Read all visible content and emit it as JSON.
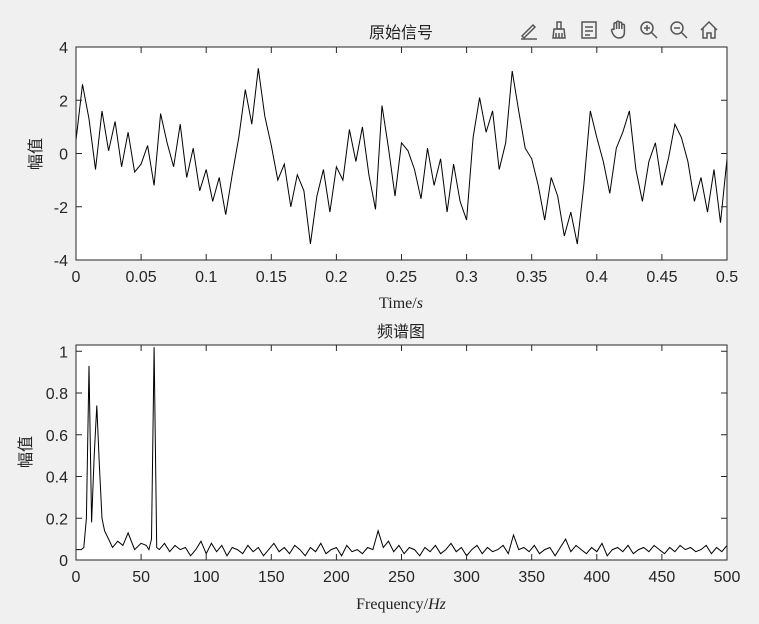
{
  "colors": {
    "background": "#f0f0f0",
    "axes_bg": "#ffffff",
    "line": "#000000",
    "axis": "#262626"
  },
  "toolbar": [
    {
      "name": "edit-tool-icon"
    },
    {
      "name": "brush-tool-icon"
    },
    {
      "name": "datatip-icon"
    },
    {
      "name": "pan-hand-icon"
    },
    {
      "name": "zoom-in-icon"
    },
    {
      "name": "zoom-out-icon"
    },
    {
      "name": "home-icon"
    }
  ],
  "chart_data": [
    {
      "type": "line",
      "title": "原始信号",
      "xlabel_main": "Time/",
      "xlabel_unit": "s",
      "ylabel": "幅值",
      "xlim": [
        0,
        0.5
      ],
      "ylim": [
        -4,
        4
      ],
      "xticks": [
        0,
        0.05,
        0.1,
        0.15,
        0.2,
        0.25,
        0.3,
        0.35,
        0.4,
        0.45,
        0.5
      ],
      "xtick_labels": [
        "0",
        "0.05",
        "0.1",
        "0.15",
        "0.2",
        "0.25",
        "0.3",
        "0.35",
        "0.4",
        "0.45",
        "0.5"
      ],
      "yticks": [
        -4,
        -2,
        0,
        2,
        4
      ],
      "ytick_labels": [
        "-4",
        "-2",
        "0",
        "2",
        "4"
      ],
      "grid": false,
      "series": [
        {
          "x": [
            0,
            0.005,
            0.01,
            0.015,
            0.02,
            0.025,
            0.03,
            0.035,
            0.04,
            0.045,
            0.05,
            0.055,
            0.06,
            0.065,
            0.07,
            0.075,
            0.08,
            0.085,
            0.09,
            0.095,
            0.1,
            0.105,
            0.11,
            0.115,
            0.12,
            0.125,
            0.13,
            0.135,
            0.14,
            0.145,
            0.15,
            0.155,
            0.16,
            0.165,
            0.17,
            0.175,
            0.18,
            0.185,
            0.19,
            0.195,
            0.2,
            0.205,
            0.21,
            0.215,
            0.22,
            0.225,
            0.23,
            0.235,
            0.24,
            0.245,
            0.25,
            0.255,
            0.26,
            0.265,
            0.27,
            0.275,
            0.28,
            0.285,
            0.29,
            0.295,
            0.3,
            0.305,
            0.31,
            0.315,
            0.32,
            0.325,
            0.33,
            0.335,
            0.34,
            0.345,
            0.35,
            0.355,
            0.36,
            0.365,
            0.37,
            0.375,
            0.38,
            0.385,
            0.39,
            0.395,
            0.4,
            0.405,
            0.41,
            0.415,
            0.42,
            0.425,
            0.43,
            0.435,
            0.44,
            0.445,
            0.45,
            0.455,
            0.46,
            0.465,
            0.47,
            0.475,
            0.48,
            0.485,
            0.49,
            0.495,
            0.5
          ],
          "y": [
            0.5,
            2.6,
            1.3,
            -0.6,
            1.6,
            0.1,
            1.2,
            -0.5,
            0.8,
            -0.7,
            -0.4,
            0.3,
            -1.2,
            1.5,
            0.4,
            -0.5,
            1.1,
            -0.9,
            0.2,
            -1.4,
            -0.6,
            -1.8,
            -0.9,
            -2.3,
            -0.8,
            0.6,
            2.4,
            1.1,
            3.2,
            1.4,
            0.3,
            -1.0,
            -0.4,
            -2.0,
            -0.8,
            -1.4,
            -3.4,
            -1.6,
            -0.6,
            -2.2,
            -0.5,
            -1.0,
            0.9,
            -0.3,
            1.0,
            -0.8,
            -2.1,
            1.8,
            0.2,
            -1.6,
            0.4,
            0.1,
            -0.6,
            -1.7,
            0.2,
            -1.2,
            -0.2,
            -2.2,
            -0.4,
            -1.8,
            -2.5,
            0.6,
            2.1,
            0.8,
            1.6,
            -0.6,
            0.4,
            3.1,
            1.6,
            0.2,
            -0.2,
            -1.2,
            -2.5,
            -0.9,
            -1.6,
            -3.1,
            -2.2,
            -3.4,
            -1.2,
            1.6,
            0.6,
            -0.3,
            -1.5,
            0.2,
            0.8,
            1.6,
            -0.6,
            -1.8,
            -0.3,
            0.4,
            -1.2,
            -0.2,
            1.1,
            0.6,
            -0.3,
            -1.8,
            -0.9,
            -2.2,
            -0.6,
            -2.6,
            -0.2
          ]
        }
      ]
    },
    {
      "type": "line",
      "title": "频谱图",
      "xlabel_main": "Frequency/",
      "xlabel_unit": "Hz",
      "ylabel": "幅值",
      "xlim": [
        0,
        500
      ],
      "ylim": [
        0,
        1.03
      ],
      "xticks": [
        0,
        50,
        100,
        150,
        200,
        250,
        300,
        350,
        400,
        450,
        500
      ],
      "xtick_labels": [
        "0",
        "50",
        "100",
        "150",
        "200",
        "250",
        "300",
        "350",
        "400",
        "450",
        "500"
      ],
      "yticks": [
        0,
        0.2,
        0.4,
        0.6,
        0.8,
        1
      ],
      "ytick_labels": [
        "0",
        "0.2",
        "0.4",
        "0.6",
        "0.8",
        "1"
      ],
      "grid": false,
      "series": [
        {
          "x": [
            0,
            2,
            4,
            6,
            8,
            10,
            12,
            14,
            16,
            18,
            20,
            22,
            25,
            28,
            32,
            36,
            40,
            45,
            50,
            54,
            56,
            58,
            60,
            62,
            64,
            68,
            72,
            76,
            80,
            84,
            88,
            92,
            96,
            100,
            104,
            108,
            112,
            116,
            120,
            124,
            128,
            132,
            136,
            140,
            144,
            148,
            152,
            156,
            160,
            164,
            168,
            172,
            176,
            180,
            184,
            188,
            192,
            196,
            200,
            204,
            208,
            212,
            216,
            220,
            224,
            228,
            232,
            236,
            240,
            244,
            248,
            252,
            256,
            260,
            264,
            268,
            272,
            276,
            280,
            284,
            288,
            292,
            296,
            300,
            304,
            308,
            312,
            316,
            320,
            324,
            328,
            332,
            336,
            340,
            344,
            348,
            352,
            356,
            360,
            364,
            368,
            372,
            376,
            380,
            384,
            388,
            392,
            396,
            400,
            404,
            408,
            412,
            416,
            420,
            424,
            428,
            432,
            436,
            440,
            444,
            448,
            452,
            456,
            460,
            464,
            468,
            472,
            476,
            480,
            484,
            488,
            492,
            496,
            500
          ],
          "y": [
            0.05,
            0.05,
            0.05,
            0.06,
            0.2,
            0.93,
            0.18,
            0.5,
            0.74,
            0.45,
            0.2,
            0.14,
            0.1,
            0.06,
            0.09,
            0.07,
            0.13,
            0.05,
            0.08,
            0.07,
            0.05,
            0.1,
            1.02,
            0.06,
            0.05,
            0.08,
            0.04,
            0.07,
            0.05,
            0.06,
            0.02,
            0.05,
            0.09,
            0.03,
            0.08,
            0.04,
            0.07,
            0.02,
            0.06,
            0.05,
            0.03,
            0.07,
            0.04,
            0.06,
            0.02,
            0.05,
            0.08,
            0.04,
            0.06,
            0.03,
            0.07,
            0.05,
            0.02,
            0.06,
            0.04,
            0.08,
            0.03,
            0.05,
            0.06,
            0.02,
            0.07,
            0.04,
            0.05,
            0.03,
            0.06,
            0.05,
            0.14,
            0.06,
            0.09,
            0.04,
            0.07,
            0.03,
            0.06,
            0.05,
            0.02,
            0.06,
            0.04,
            0.07,
            0.03,
            0.05,
            0.08,
            0.04,
            0.06,
            0.02,
            0.05,
            0.07,
            0.03,
            0.06,
            0.04,
            0.05,
            0.07,
            0.03,
            0.12,
            0.05,
            0.06,
            0.04,
            0.07,
            0.03,
            0.05,
            0.06,
            0.02,
            0.06,
            0.1,
            0.04,
            0.07,
            0.05,
            0.03,
            0.06,
            0.04,
            0.08,
            0.02,
            0.05,
            0.06,
            0.04,
            0.07,
            0.03,
            0.05,
            0.06,
            0.04,
            0.07,
            0.05,
            0.03,
            0.06,
            0.04,
            0.07,
            0.05,
            0.06,
            0.04,
            0.05,
            0.07,
            0.03,
            0.06,
            0.04,
            0.07
          ]
        }
      ]
    }
  ]
}
